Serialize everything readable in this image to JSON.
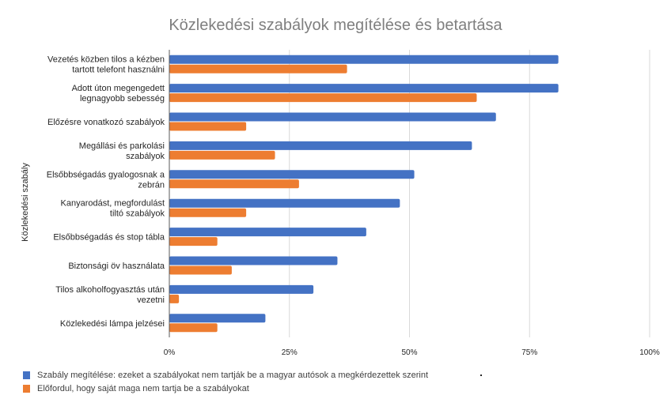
{
  "chart_data": {
    "type": "bar",
    "orientation": "horizontal",
    "title": "Közlekedési szabályok megítélése és betartása",
    "xlabel": "",
    "ylabel": "Közlekedési szabály",
    "xlim": [
      0,
      100
    ],
    "x_ticks": [
      "0%",
      "25%",
      "50%",
      "75%",
      "100%"
    ],
    "x_tick_values": [
      0,
      25,
      50,
      75,
      100
    ],
    "grid": true,
    "legend_position": "bottom-left",
    "categories": [
      [
        "Vezetés közben tilos a kézben",
        "tartott telefont használni"
      ],
      [
        "Adott úton megengedett",
        "legnagyobb sebesség"
      ],
      [
        "Előzésre vonatkozó szabályok"
      ],
      [
        "Megállási és parkolási",
        "szabályok"
      ],
      [
        "Elsőbbségadás gyalogosnak a",
        "zebrán"
      ],
      [
        "Kanyarodást, megfordulást",
        "tiltó szabályok"
      ],
      [
        "Elsőbbségadás és stop tábla"
      ],
      [
        "Biztonsági öv használata"
      ],
      [
        "Tilos alkoholfogyasztás után",
        "vezetni"
      ],
      [
        "Közlekedési lámpa jelzései"
      ]
    ],
    "series": [
      {
        "name": "Szabály megítélése: ezeket a szabályokat nem tartják be a magyar autósok a megkérdezettek szerint",
        "color": "#4472c4",
        "values": [
          81,
          81,
          68,
          63,
          51,
          48,
          41,
          35,
          30,
          20
        ]
      },
      {
        "name": "Előfordul, hogy saját maga nem tartja be a szabályokat",
        "color": "#ed7d31",
        "values": [
          37,
          64,
          16,
          22,
          27,
          16,
          10,
          13,
          2,
          10
        ]
      }
    ]
  }
}
